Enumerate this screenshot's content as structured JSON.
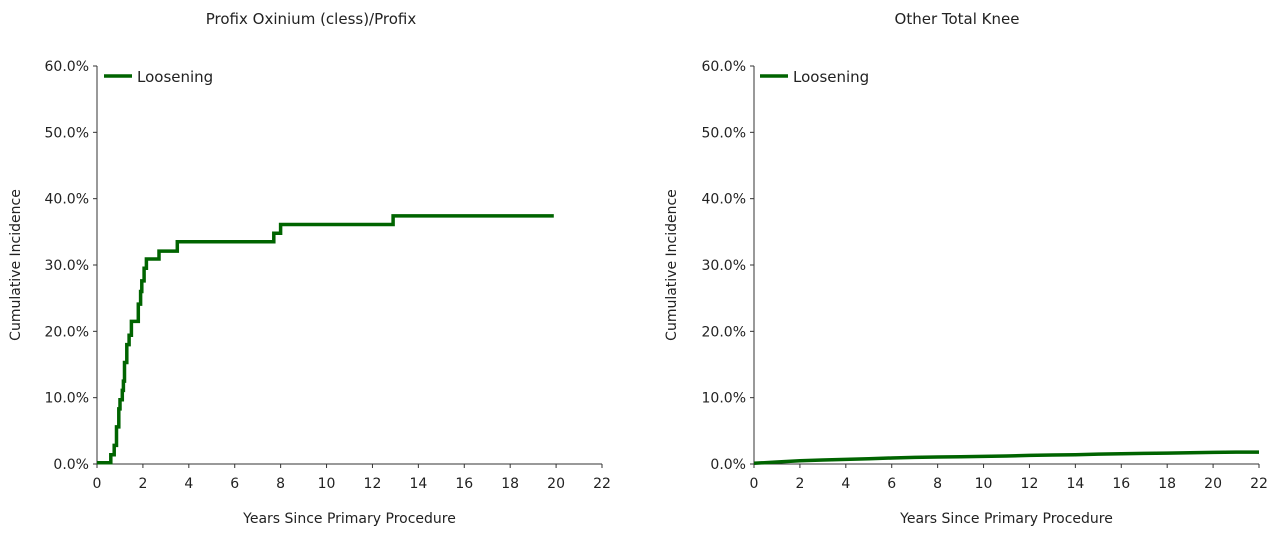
{
  "chart_data": [
    {
      "type": "line",
      "title": "Profix Oxinium (cless)/Profix",
      "xlabel": "Years Since Primary Procedure",
      "ylabel": "Cumulative Incidence",
      "xlim": [
        0,
        22
      ],
      "ylim": [
        0,
        60
      ],
      "xticks": [
        "0",
        "2",
        "4",
        "6",
        "8",
        "10",
        "12",
        "14",
        "16",
        "18",
        "20",
        "22"
      ],
      "yticks": [
        "0.0%",
        "10.0%",
        "20.0%",
        "30.0%",
        "40.0%",
        "50.0%",
        "60.0%"
      ],
      "legend_position": "top-left",
      "grid": false,
      "series": [
        {
          "name": "Loosening",
          "color": "#006400",
          "step": true,
          "points": [
            [
              0,
              0.2
            ],
            [
              0.6,
              0.2
            ],
            [
              0.6,
              1.4
            ],
            [
              0.75,
              1.4
            ],
            [
              0.75,
              2.8
            ],
            [
              0.85,
              2.8
            ],
            [
              0.85,
              5.6
            ],
            [
              0.95,
              5.6
            ],
            [
              0.95,
              8.3
            ],
            [
              1.0,
              8.3
            ],
            [
              1.0,
              9.7
            ],
            [
              1.1,
              9.7
            ],
            [
              1.1,
              11.1
            ],
            [
              1.15,
              11.1
            ],
            [
              1.15,
              12.5
            ],
            [
              1.2,
              12.5
            ],
            [
              1.2,
              15.3
            ],
            [
              1.3,
              15.3
            ],
            [
              1.3,
              18.0
            ],
            [
              1.4,
              18.0
            ],
            [
              1.4,
              19.4
            ],
            [
              1.5,
              19.4
            ],
            [
              1.5,
              21.5
            ],
            [
              1.8,
              21.5
            ],
            [
              1.8,
              24.1
            ],
            [
              1.9,
              24.1
            ],
            [
              1.9,
              26.0
            ],
            [
              1.95,
              26.0
            ],
            [
              1.95,
              27.6
            ],
            [
              2.05,
              27.6
            ],
            [
              2.05,
              29.5
            ],
            [
              2.15,
              29.5
            ],
            [
              2.15,
              30.9
            ],
            [
              2.7,
              30.9
            ],
            [
              2.7,
              32.1
            ],
            [
              3.5,
              32.1
            ],
            [
              3.5,
              33.5
            ],
            [
              7.7,
              33.5
            ],
            [
              7.7,
              34.8
            ],
            [
              8.0,
              34.8
            ],
            [
              8.0,
              36.1
            ],
            [
              12.9,
              36.1
            ],
            [
              12.9,
              37.4
            ],
            [
              19.9,
              37.4
            ]
          ]
        }
      ]
    },
    {
      "type": "line",
      "title": "Other Total Knee",
      "xlabel": "Years Since Primary Procedure",
      "ylabel": "Cumulative Incidence",
      "xlim": [
        0,
        22
      ],
      "ylim": [
        0,
        60
      ],
      "xticks": [
        "0",
        "2",
        "4",
        "6",
        "8",
        "10",
        "12",
        "14",
        "16",
        "18",
        "20",
        "22"
      ],
      "yticks": [
        "0.0%",
        "10.0%",
        "20.0%",
        "30.0%",
        "40.0%",
        "50.0%",
        "60.0%"
      ],
      "legend_position": "top-left",
      "grid": false,
      "series": [
        {
          "name": "Loosening",
          "color": "#006400",
          "step": false,
          "points": [
            [
              0,
              0.1
            ],
            [
              1,
              0.3
            ],
            [
              2,
              0.5
            ],
            [
              3,
              0.6
            ],
            [
              4,
              0.7
            ],
            [
              5,
              0.8
            ],
            [
              6,
              0.9
            ],
            [
              7,
              1.0
            ],
            [
              8,
              1.05
            ],
            [
              9,
              1.1
            ],
            [
              10,
              1.15
            ],
            [
              11,
              1.2
            ],
            [
              12,
              1.3
            ],
            [
              13,
              1.35
            ],
            [
              14,
              1.4
            ],
            [
              15,
              1.5
            ],
            [
              16,
              1.55
            ],
            [
              17,
              1.6
            ],
            [
              18,
              1.65
            ],
            [
              19,
              1.7
            ],
            [
              20,
              1.75
            ],
            [
              21,
              1.8
            ],
            [
              22,
              1.8
            ]
          ]
        }
      ]
    }
  ]
}
